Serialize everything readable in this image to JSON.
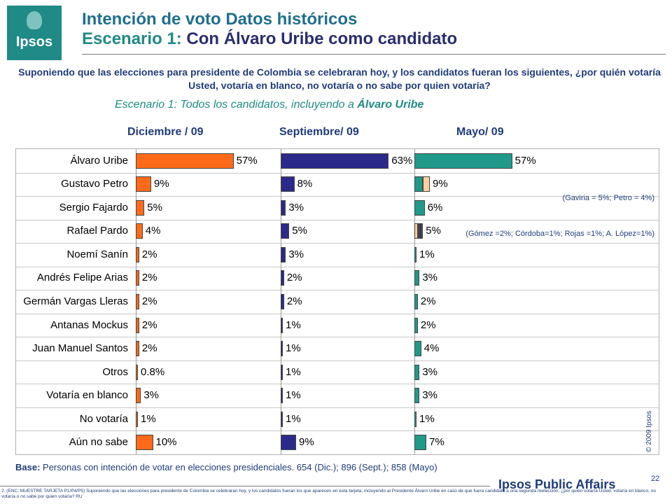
{
  "logo": {
    "text": "Ipsos"
  },
  "title": {
    "line1": "Intención de voto Datos históricos",
    "line2_prefix": "Escenario 1:",
    "line2_rest": " Con Álvaro Uribe como candidato"
  },
  "question": "Suponiendo que las elecciones para presidente de Colombia se celebraran hoy, y los candidatos fueran los siguientes, ¿por quién votaría Usted, votaría en blanco, no votaría o no sabe por quien votaría?",
  "scenario": {
    "prefix": "Escenario 1: Todos los candidatos, incluyendo a ",
    "highlight": "Álvaro Uribe"
  },
  "colors": {
    "dic": "#ff6a1a",
    "sep": "#2b2a8a",
    "may": "#1f9a8a",
    "may_alt": "#ffd0a0"
  },
  "chart_data": {
    "type": "bar",
    "orientation": "horizontal",
    "categories": [
      "Álvaro Uribe",
      "Gustavo Petro",
      "Sergio Fajardo",
      "Rafael Pardo",
      "Noemí Sanín",
      "Andrés Felipe Arias",
      "Germán Vargas Lleras",
      "Antanas Mockus",
      "Juan Manuel Santos",
      "Otros",
      "Votaría en blanco",
      "No votaría",
      "Aún no sabe"
    ],
    "series": [
      {
        "name": "Diciembre / 09",
        "values": [
          57,
          9,
          5,
          4,
          2,
          2,
          2,
          2,
          2,
          0.8,
          3,
          1,
          10
        ],
        "labels": [
          "57%",
          "9%",
          "5%",
          "4%",
          "2%",
          "2%",
          "2%",
          "2%",
          "2%",
          "0.8%",
          "3%",
          "1%",
          "10%"
        ]
      },
      {
        "name": "Septiembre/ 09",
        "values": [
          63,
          8,
          3,
          5,
          3,
          2,
          2,
          1,
          1,
          1,
          1,
          1,
          9
        ],
        "labels": [
          "63%",
          "8%",
          "3%",
          "5%",
          "3%",
          "2%",
          "2%",
          "1%",
          "1%",
          "1%",
          "1%",
          "1%",
          "9%"
        ]
      },
      {
        "name": "Mayo/ 09",
        "values": [
          57,
          9,
          6,
          5,
          1,
          3,
          2,
          2,
          4,
          3,
          3,
          1,
          7
        ],
        "labels": [
          "57%",
          "9%",
          "6%",
          "5%",
          "1%",
          "3%",
          "2%",
          "2%",
          "4%",
          "3%",
          "3%",
          "1%",
          "7%"
        ]
      }
    ],
    "annotations": [
      {
        "series": "Mayo/ 09",
        "category": "Gustavo Petro",
        "text": "(Gaviria = 5%; Petro = 4%)",
        "segments": [
          5,
          4
        ]
      },
      {
        "series": "Mayo/ 09",
        "category": "Rafael Pardo",
        "text": "(Gómez =2%; Córdoba=1%; Rojas =1%; A. López=1%)",
        "segments": [
          2,
          1,
          1,
          1
        ]
      }
    ]
  },
  "copyright": "© 2009 Ipsos",
  "base": {
    "label": "Base:",
    "text": " Personas con intención de votar en elecciones presidenciales. 654 (Dic.); 896 (Sept.); 858 (Mayo)"
  },
  "footnote": "2. (ENC: MUESTRE TARJETA P1/P4/P5) Suponiendo que las elecciones para presidente de Colombia se celebraran hoy, y los candidatos fueran los que aparecen en esta tarjeta, incluyendo al Presidente Álvaro Uribe en caso de que fuera candidato a una segunda reelección, ¿por quién votaría Usted, votaría en blanco, no votaría o no sabe por quien votaría? RU",
  "brand": "Ipsos Public Affairs",
  "page_number": "22"
}
